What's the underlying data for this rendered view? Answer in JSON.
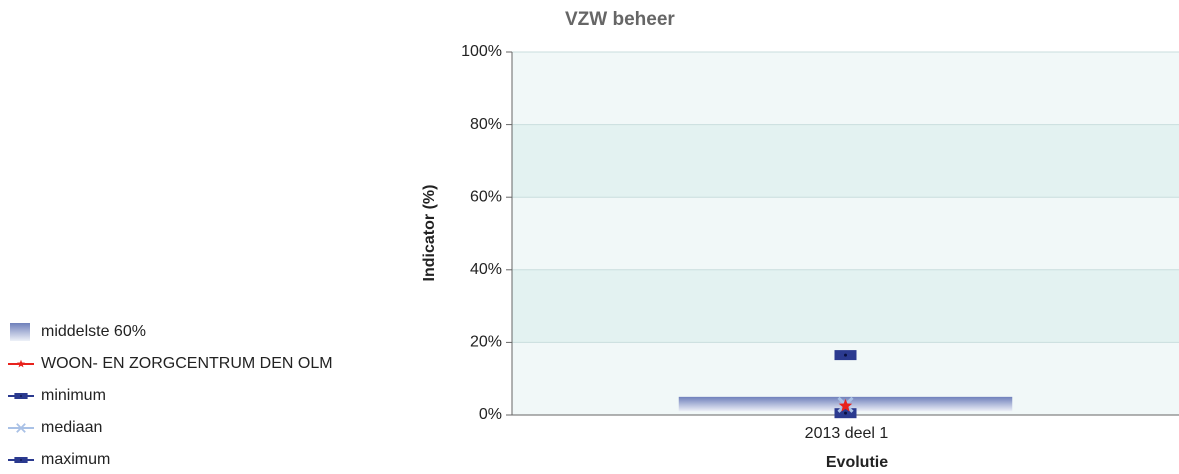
{
  "chart_data": {
    "type": "range",
    "title": "VZW beheer",
    "y_label": "Indicator (%)",
    "x_label": "Evolutie",
    "categories": [
      "2013 deel 1"
    ],
    "ylim": [
      0,
      100
    ],
    "yticks": [
      {
        "value": 0,
        "label": "0%"
      },
      {
        "value": 20,
        "label": "20%"
      },
      {
        "value": 40,
        "label": "40%"
      },
      {
        "value": 60,
        "label": "60%"
      },
      {
        "value": 80,
        "label": "80%"
      },
      {
        "value": 100,
        "label": "100%"
      }
    ],
    "series": [
      {
        "name": "middelste 60%",
        "color": "#6f80bb",
        "marker": "bar",
        "low": [
          1
        ],
        "values": [
          5
        ]
      },
      {
        "name": "WOON- EN ZORGCENTRUM DEN OLM",
        "color": "#e8221c",
        "marker": "star",
        "values": [
          2.5
        ]
      },
      {
        "name": "minimum",
        "color": "#2b3a8f",
        "marker": "square",
        "values": [
          0.5
        ]
      },
      {
        "name": "mediaan",
        "color": "#a9c1e6",
        "marker": "cross",
        "values": [
          2.8
        ]
      },
      {
        "name": "maximum",
        "color": "#2b3a8f",
        "marker": "square",
        "values": [
          16.5
        ]
      }
    ],
    "grid": true,
    "legend": "bottom-left"
  }
}
